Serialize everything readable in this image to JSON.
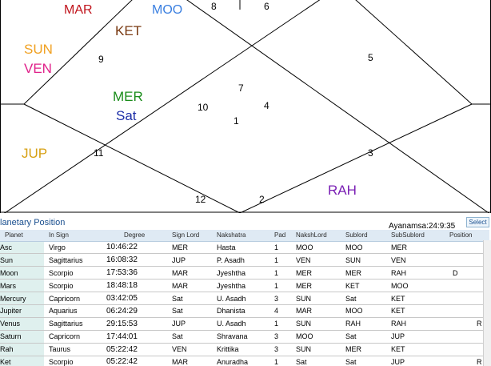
{
  "chart": {
    "houses": [
      "8",
      "6",
      "9",
      "5",
      "7",
      "10",
      "4",
      "1",
      "11",
      "3",
      "12",
      "2"
    ],
    "planets": {
      "mar": "MAR",
      "moo": "MOO",
      "ket": "KET",
      "sun": "SUN",
      "ven": "VEN",
      "mer": "MER",
      "sat": "Sat",
      "jup": "JUP",
      "rah": "RAH"
    },
    "colors": {
      "mar": "#c0141c",
      "moo": "#3a7fe0",
      "ket": "#7a3a12",
      "sun": "#f0a020",
      "ven": "#e0218a",
      "mer": "#1a8c1a",
      "sat": "#1e2fa8",
      "jup": "#d7a013",
      "rah": "#7a1fb4"
    }
  },
  "panel": {
    "title": "lanetary Position",
    "ayanamsa": "Ayanamsa:24:9:35",
    "select_label": "Select"
  },
  "table": {
    "headers": [
      "Planet",
      "In Sign",
      "Degree",
      "Sign Lord",
      "Nakshatra",
      "Pad",
      "NakshLord",
      "Sublord",
      "SubSublord",
      "Position"
    ],
    "rows": [
      {
        "planet": "Asc",
        "sign": "Virgo",
        "degree": "10:46:22",
        "signlord": "MER",
        "nak": "Hasta",
        "pad": "1",
        "nlord": "MOO",
        "sub": "MOO",
        "subsub": "MER",
        "pos": ""
      },
      {
        "planet": "Sun",
        "sign": "Sagittarius",
        "degree": "16:08:32",
        "signlord": "JUP",
        "nak": "P. Asadh",
        "pad": "1",
        "nlord": "VEN",
        "sub": "SUN",
        "subsub": "VEN",
        "pos": ""
      },
      {
        "planet": "Moon",
        "sign": "Scorpio",
        "degree": "17:53:36",
        "signlord": "MAR",
        "nak": "Jyeshtha",
        "pad": "1",
        "nlord": "MER",
        "sub": "MER",
        "subsub": "RAH",
        "pos": "D"
      },
      {
        "planet": "Mars",
        "sign": "Scorpio",
        "degree": "18:48:18",
        "signlord": "MAR",
        "nak": "Jyeshtha",
        "pad": "1",
        "nlord": "MER",
        "sub": "KET",
        "subsub": "MOO",
        "pos": ""
      },
      {
        "planet": "Mercury",
        "sign": "Capricorn",
        "degree": "03:42:05",
        "signlord": "Sat",
        "nak": "U. Asadh",
        "pad": "3",
        "nlord": "SUN",
        "sub": "Sat",
        "subsub": "KET",
        "pos": ""
      },
      {
        "planet": "Jupiter",
        "sign": "Aquarius",
        "degree": "06:24:29",
        "signlord": "Sat",
        "nak": "Dhanista",
        "pad": "4",
        "nlord": "MAR",
        "sub": "MOO",
        "subsub": "KET",
        "pos": ""
      },
      {
        "planet": "Venus",
        "sign": "Sagittarius",
        "degree": "29:15:53",
        "signlord": "JUP",
        "nak": "U. Asadh",
        "pad": "1",
        "nlord": "SUN",
        "sub": "RAH",
        "subsub": "RAH",
        "pos": "R"
      },
      {
        "planet": "Saturn",
        "sign": "Capricorn",
        "degree": "17:44:01",
        "signlord": "Sat",
        "nak": "Shravana",
        "pad": "3",
        "nlord": "MOO",
        "sub": "Sat",
        "subsub": "JUP",
        "pos": ""
      },
      {
        "planet": "Rah",
        "sign": "Taurus",
        "degree": "05:22:42",
        "signlord": "VEN",
        "nak": "Krittika",
        "pad": "3",
        "nlord": "SUN",
        "sub": "MER",
        "subsub": "KET",
        "pos": ""
      },
      {
        "planet": "Ket",
        "sign": "Scorpio",
        "degree": "05:22:42",
        "signlord": "MAR",
        "nak": "Anuradha",
        "pad": "1",
        "nlord": "Sat",
        "sub": "Sat",
        "subsub": "JUP",
        "pos": "R"
      }
    ]
  }
}
